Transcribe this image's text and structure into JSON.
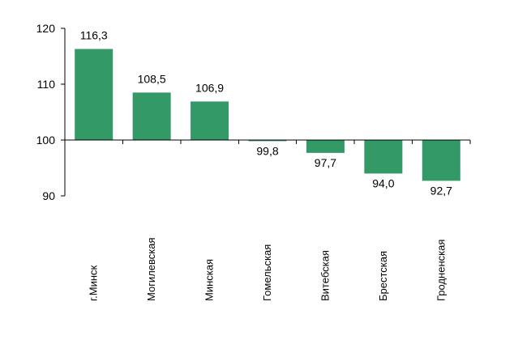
{
  "chart_data": {
    "type": "bar",
    "categories": [
      "г.Минск",
      "Могилевская",
      "Минская",
      "Гомельская",
      "Витебская",
      "Брестская",
      "Гродненская"
    ],
    "values": [
      116.3,
      108.5,
      106.9,
      99.8,
      97.7,
      94.0,
      92.7
    ],
    "value_labels": [
      "116,3",
      "108,5",
      "106,9",
      "99,8",
      "97,7",
      "94,0",
      "92,7"
    ],
    "baseline": 100,
    "ylim": [
      90,
      120
    ],
    "yticks": [
      90,
      100,
      110,
      120
    ],
    "ytick_labels": [
      "90",
      "100",
      "110",
      "120"
    ],
    "bar_color": "#339966",
    "grid": false,
    "title": "",
    "xlabel": "",
    "ylabel": ""
  }
}
